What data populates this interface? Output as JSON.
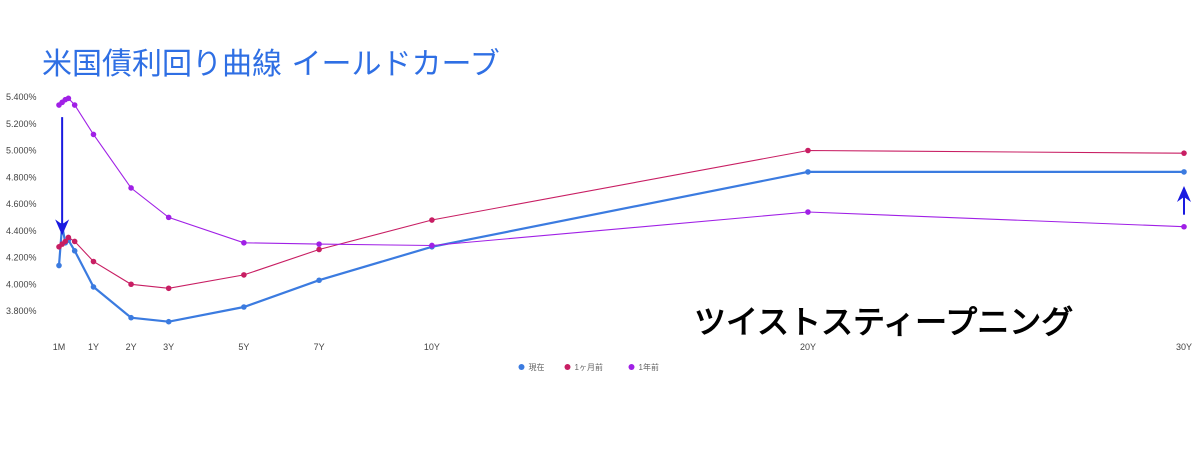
{
  "chart_data": {
    "type": "line",
    "title": "米国債利回り曲線 イールドカーブ",
    "annotation": "ツイストスティープニング",
    "xlabel": "",
    "ylabel": "",
    "x_tick_labels": [
      "1M",
      "1Y",
      "2Y",
      "3Y",
      "5Y",
      "7Y",
      "10Y",
      "20Y",
      "30Y"
    ],
    "x_tick_positions": [
      1,
      12,
      24,
      36,
      60,
      84,
      120,
      240,
      360
    ],
    "x_unit": "months",
    "y_tick_labels": [
      "3.800%",
      "4.000%",
      "4.200%",
      "4.400%",
      "4.600%",
      "4.800%",
      "5.000%",
      "5.200%",
      "5.400%"
    ],
    "ylim": [
      3.62,
      5.42
    ],
    "grid": false,
    "legend_position": "bottom",
    "series": [
      {
        "name": "現在",
        "color": "#3b7be0",
        "x": [
          1,
          2,
          3,
          4,
          6,
          12,
          24,
          36,
          60,
          84,
          120,
          240,
          360
        ],
        "y": [
          4.14,
          4.44,
          4.31,
          4.33,
          4.25,
          3.98,
          3.75,
          3.72,
          3.83,
          4.03,
          4.28,
          4.84,
          4.84
        ]
      },
      {
        "name": "1ヶ月前",
        "color": "#c81e63",
        "x": [
          1,
          2,
          3,
          4,
          6,
          12,
          24,
          36,
          60,
          84,
          120,
          240,
          360
        ],
        "y": [
          4.28,
          4.3,
          4.32,
          4.35,
          4.32,
          4.17,
          4.0,
          3.97,
          4.07,
          4.26,
          4.48,
          5.0,
          4.98
        ]
      },
      {
        "name": "1年前",
        "color": "#a020e6",
        "x": [
          1,
          2,
          3,
          4,
          6,
          12,
          24,
          36,
          60,
          84,
          120,
          240,
          360
        ],
        "y": [
          5.34,
          5.36,
          5.38,
          5.39,
          5.34,
          5.12,
          4.72,
          4.5,
          4.31,
          4.3,
          4.29,
          4.54,
          4.43
        ]
      }
    ],
    "arrows": [
      {
        "x": 2,
        "from": 5.25,
        "to": 4.38,
        "direction": "down",
        "color": "#1a1ae0"
      },
      {
        "x": 360,
        "from": 4.52,
        "to": 4.72,
        "direction": "up",
        "color": "#1a1ae0"
      }
    ]
  }
}
